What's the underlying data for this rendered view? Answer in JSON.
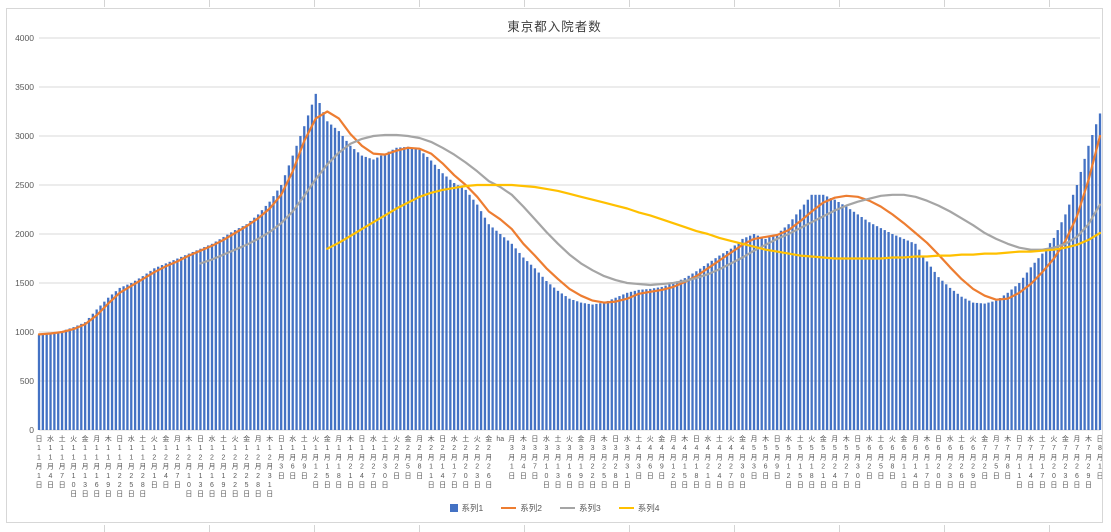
{
  "chart": {
    "title": "東京都入院者数",
    "y_axis": {
      "min": 0,
      "max": 4000,
      "step": 500,
      "tick_labels": [
        "0",
        "500",
        "1000",
        "1500",
        "2000",
        "2500",
        "3000",
        "3500",
        "4000"
      ]
    },
    "legend": [
      {
        "name": "系列1",
        "color": "#4472C4",
        "marker": "square"
      },
      {
        "name": "系列2",
        "color": "#ED7D31",
        "marker": "line"
      },
      {
        "name": "系列3",
        "color": "#A5A5A5",
        "marker": "line"
      },
      {
        "name": "系列4",
        "color": "#FFC000",
        "marker": "line"
      }
    ],
    "colors": {
      "gridline": "#d9d9d9",
      "axis_text": "#595959",
      "title_text": "#404040"
    }
  },
  "chart_data": {
    "type": "bar",
    "subtype": "combo-bar-and-lines",
    "title": "東京都入院者数",
    "xlabel": "",
    "ylabel": "",
    "ylim": [
      0,
      4000
    ],
    "grid": true,
    "legend_position": "bottom",
    "x_tick_interval_days": 3,
    "x_tick_labels": [
      [
        "日",
        "11",
        "1"
      ],
      [
        "水",
        "11",
        "4"
      ],
      [
        "土",
        "11",
        "7"
      ],
      [
        "火",
        "11",
        "10"
      ],
      [
        "金",
        "11",
        "13"
      ],
      [
        "月",
        "11",
        "16"
      ],
      [
        "木",
        "11",
        "19"
      ],
      [
        "日",
        "11",
        "22"
      ],
      [
        "水",
        "11",
        "25"
      ],
      [
        "土",
        "11",
        "28"
      ],
      [
        "火",
        "12",
        "1"
      ],
      [
        "金",
        "12",
        "4"
      ],
      [
        "月",
        "12",
        "7"
      ],
      [
        "木",
        "12",
        "10"
      ],
      [
        "日",
        "12",
        "13"
      ],
      [
        "水",
        "12",
        "16"
      ],
      [
        "土",
        "12",
        "19"
      ],
      [
        "火",
        "12",
        "22"
      ],
      [
        "金",
        "12",
        "25"
      ],
      [
        "月",
        "12",
        "28"
      ],
      [
        "木",
        "12",
        "31"
      ],
      [
        "日",
        "1",
        "3"
      ],
      [
        "水",
        "1",
        "6"
      ],
      [
        "土",
        "1",
        "9"
      ],
      [
        "火",
        "1",
        "12"
      ],
      [
        "金",
        "1",
        "15"
      ],
      [
        "月",
        "1",
        "18"
      ],
      [
        "木",
        "1",
        "21"
      ],
      [
        "日",
        "1",
        "24"
      ],
      [
        "水",
        "1",
        "27"
      ],
      [
        "土",
        "1",
        "30"
      ],
      [
        "火",
        "2",
        "2"
      ],
      [
        "金",
        "2",
        "5"
      ],
      [
        "月",
        "2",
        "8"
      ],
      [
        "木",
        "2",
        "11"
      ],
      [
        "日",
        "2",
        "14"
      ],
      [
        "水",
        "2",
        "17"
      ],
      [
        "土",
        "2",
        "20"
      ],
      [
        "火",
        "2",
        "23"
      ],
      [
        "金",
        "2",
        "26"
      ],
      [
        "ha",
        "",
        ""
      ],
      [
        "月",
        "3",
        "1"
      ],
      [
        "木",
        "3",
        "4"
      ],
      [
        "日",
        "3",
        "7"
      ],
      [
        "水",
        "3",
        "10"
      ],
      [
        "土",
        "3",
        "13"
      ],
      [
        "火",
        "3",
        "16"
      ],
      [
        "金",
        "3",
        "19"
      ],
      [
        "月",
        "3",
        "22"
      ],
      [
        "木",
        "3",
        "25"
      ],
      [
        "日",
        "3",
        "28"
      ],
      [
        "水",
        "3",
        "31"
      ],
      [
        "土",
        "4",
        "3"
      ],
      [
        "火",
        "4",
        "6"
      ],
      [
        "金",
        "4",
        "9"
      ],
      [
        "月",
        "4",
        "12"
      ],
      [
        "木",
        "4",
        "15"
      ],
      [
        "日",
        "4",
        "18"
      ],
      [
        "水",
        "4",
        "21"
      ],
      [
        "土",
        "4",
        "24"
      ],
      [
        "火",
        "4",
        "27"
      ],
      [
        "金",
        "4",
        "30"
      ],
      [
        "月",
        "5",
        "3"
      ],
      [
        "木",
        "5",
        "6"
      ],
      [
        "日",
        "5",
        "9"
      ],
      [
        "水",
        "5",
        "12"
      ],
      [
        "土",
        "5",
        "15"
      ],
      [
        "火",
        "5",
        "18"
      ],
      [
        "金",
        "5",
        "21"
      ],
      [
        "月",
        "5",
        "24"
      ],
      [
        "木",
        "5",
        "27"
      ],
      [
        "日",
        "5",
        "30"
      ],
      [
        "水",
        "6",
        "2"
      ],
      [
        "土",
        "6",
        "5"
      ],
      [
        "火",
        "6",
        "8"
      ],
      [
        "金",
        "6",
        "11"
      ],
      [
        "月",
        "6",
        "14"
      ],
      [
        "木",
        "6",
        "17"
      ],
      [
        "日",
        "6",
        "20"
      ],
      [
        "水",
        "6",
        "23"
      ],
      [
        "土",
        "6",
        "26"
      ],
      [
        "火",
        "6",
        "29"
      ],
      [
        "金",
        "7",
        "2"
      ],
      [
        "月",
        "7",
        "5"
      ],
      [
        "木",
        "7",
        "8"
      ],
      [
        "日",
        "7",
        "11"
      ],
      [
        "水",
        "7",
        "14"
      ],
      [
        "土",
        "7",
        "17"
      ],
      [
        "火",
        "7",
        "20"
      ],
      [
        "金",
        "7",
        "23"
      ],
      [
        "月",
        "7",
        "26"
      ],
      [
        "木",
        "7",
        "29"
      ],
      [
        "日",
        "8",
        "1"
      ]
    ],
    "series": [
      {
        "name": "系列1",
        "type": "bar",
        "color": "#4472C4",
        "values": [
          970,
          990,
          1010,
          1050,
          1100,
          1230,
          1350,
          1450,
          1500,
          1570,
          1650,
          1700,
          1750,
          1800,
          1850,
          1900,
          1970,
          2040,
          2100,
          2200,
          2330,
          2500,
          2800,
          3100,
          3430,
          3150,
          3050,
          2900,
          2800,
          2760,
          2820,
          2880,
          2890,
          2860,
          2750,
          2620,
          2520,
          2450,
          2300,
          2100,
          2000,
          1900,
          1760,
          1650,
          1520,
          1420,
          1340,
          1300,
          1280,
          1300,
          1350,
          1400,
          1430,
          1440,
          1460,
          1500,
          1550,
          1620,
          1700,
          1780,
          1850,
          1950,
          2000,
          1950,
          2000,
          2100,
          2250,
          2400,
          2400,
          2350,
          2280,
          2200,
          2120,
          2060,
          2000,
          1950,
          1900,
          1720,
          1560,
          1450,
          1360,
          1300,
          1290,
          1320,
          1400,
          1500,
          1660,
          1800,
          1960,
          2200,
          2500,
          2900,
          3230
        ]
      },
      {
        "name": "系列2",
        "type": "line",
        "color": "#ED7D31",
        "values": [
          975,
          985,
          1000,
          1030,
          1080,
          1170,
          1290,
          1400,
          1470,
          1540,
          1610,
          1670,
          1720,
          1780,
          1830,
          1880,
          1940,
          2010,
          2080,
          2160,
          2260,
          2400,
          2640,
          2950,
          3180,
          3250,
          3180,
          3020,
          2900,
          2820,
          2810,
          2850,
          2880,
          2870,
          2820,
          2720,
          2600,
          2500,
          2380,
          2230,
          2150,
          2050,
          1900,
          1780,
          1650,
          1540,
          1440,
          1370,
          1320,
          1300,
          1310,
          1340,
          1390,
          1410,
          1430,
          1460,
          1510,
          1570,
          1650,
          1730,
          1810,
          1890,
          1950,
          1970,
          1990,
          2040,
          2130,
          2230,
          2320,
          2370,
          2390,
          2380,
          2340,
          2280,
          2200,
          2110,
          2010,
          1910,
          1790,
          1660,
          1540,
          1440,
          1370,
          1330,
          1340,
          1400,
          1490,
          1610,
          1750,
          1930,
          2180,
          2550,
          3000
        ]
      },
      {
        "name": "系列3",
        "type": "line",
        "color": "#A5A5A5",
        "values": [
          null,
          null,
          null,
          null,
          null,
          null,
          null,
          null,
          null,
          null,
          null,
          null,
          null,
          null,
          1700,
          1740,
          1790,
          1840,
          1890,
          1950,
          2020,
          2110,
          2230,
          2390,
          2560,
          2710,
          2830,
          2920,
          2970,
          3000,
          3010,
          3010,
          3000,
          2980,
          2940,
          2880,
          2810,
          2730,
          2640,
          2540,
          2480,
          2400,
          2280,
          2150,
          2020,
          1900,
          1790,
          1700,
          1630,
          1570,
          1530,
          1500,
          1490,
          1480,
          1490,
          1500,
          1520,
          1550,
          1590,
          1640,
          1700,
          1760,
          1830,
          1890,
          1950,
          2000,
          2060,
          2120,
          2180,
          2240,
          2290,
          2330,
          2360,
          2390,
          2400,
          2400,
          2380,
          2340,
          2290,
          2230,
          2160,
          2090,
          2010,
          1950,
          1900,
          1860,
          1840,
          1840,
          1860,
          1900,
          1970,
          2100,
          2300
        ]
      },
      {
        "name": "系列4",
        "type": "line",
        "color": "#FFC000",
        "values": [
          null,
          null,
          null,
          null,
          null,
          null,
          null,
          null,
          null,
          null,
          null,
          null,
          null,
          null,
          null,
          null,
          null,
          null,
          null,
          null,
          null,
          null,
          null,
          null,
          null,
          1850,
          1910,
          1980,
          2050,
          2120,
          2190,
          2260,
          2320,
          2380,
          2420,
          2450,
          2470,
          2490,
          2500,
          2500,
          2500,
          2500,
          2490,
          2480,
          2460,
          2440,
          2410,
          2380,
          2350,
          2320,
          2290,
          2260,
          2220,
          2190,
          2150,
          2110,
          2070,
          2030,
          2000,
          1960,
          1930,
          1900,
          1870,
          1840,
          1820,
          1800,
          1780,
          1770,
          1760,
          1750,
          1750,
          1750,
          1750,
          1750,
          1760,
          1760,
          1770,
          1770,
          1780,
          1780,
          1790,
          1790,
          1800,
          1800,
          1810,
          1820,
          1820,
          1830,
          1840,
          1860,
          1890,
          1940,
          2010
        ]
      }
    ]
  }
}
